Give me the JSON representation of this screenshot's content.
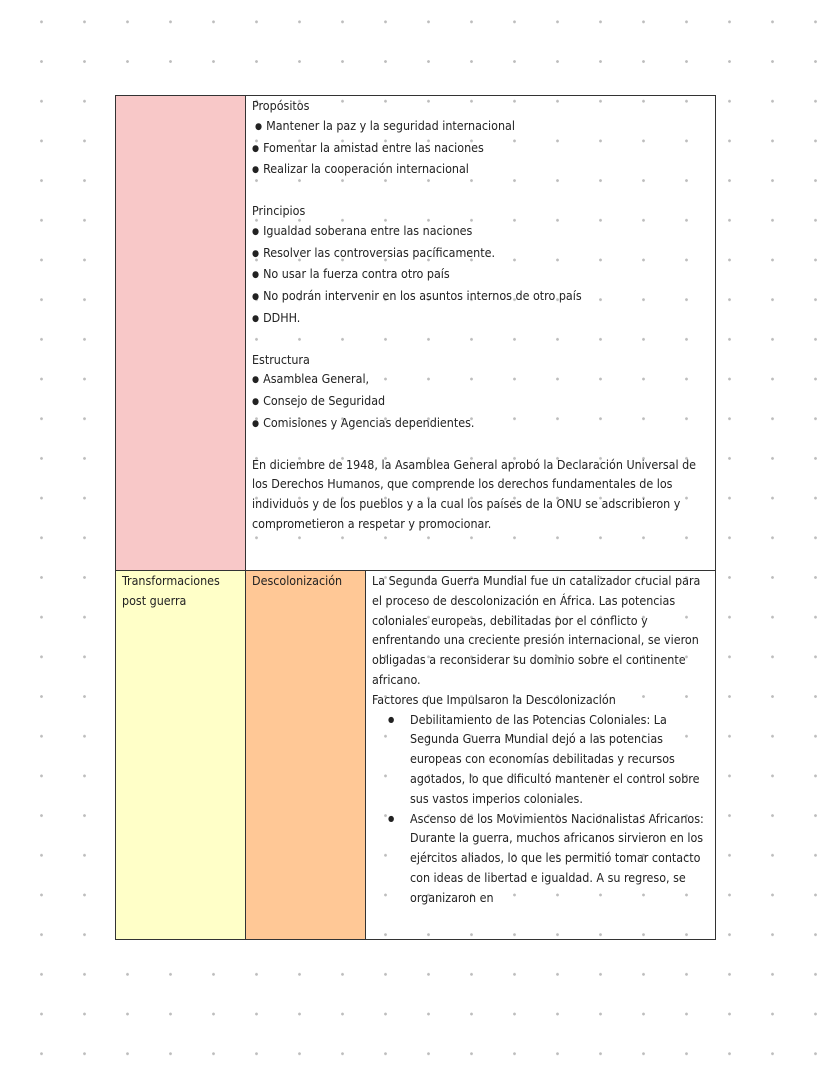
{
  "onu": {
    "propositos_title": "Propósitos",
    "propositos": [
      "Mantener la paz y la seguridad internacional",
      "Fomentar la amistad entre las naciones",
      "Realizar la cooperación internacional"
    ],
    "principios_title": "Principios",
    "principios": [
      "Igualdad soberana entre las naciones",
      "Resolver las controversias pacíficamente.",
      "No usar la fuerza contra otro país",
      "No podrán intervenir en los asuntos internos de otro país",
      "DDHH."
    ],
    "estructura_title": "Estructura",
    "estructura": [
      "Asamblea General,",
      "Consejo de Seguridad",
      "Comisiones y Agencias dependientes."
    ],
    "ddhh_paragraph": "En diciembre de 1948, la Asamblea General aprobó la Declaración Universal de los Derechos Humanos, que comprende los derechos fundamentales de los individuos y de los pueblos y a la cual los países de la ONU se adscribieron y comprometieron a respetar y promocionar."
  },
  "row2": {
    "topic": "Transformaciones post guerra",
    "subtopic": "Descolonización",
    "intro": "La Segunda Guerra Mundial fue un catalizador crucial para el proceso de descolonización en África. Las potencias coloniales europeas, debilitadas por el conflicto y enfrentando una creciente presión internacional, se vieron obligadas a reconsiderar su dominio sobre el continente africano.",
    "factores_title": "Factores que Impulsaron la Descolonización",
    "factores": [
      "Debilitamiento de las Potencias Coloniales: La Segunda Guerra Mundial dejó a las potencias europeas con economías debilitadas y recursos agotados, lo que dificultó mantener el control sobre sus vastos imperios coloniales.",
      "Ascenso de los Movimientos Nacionalistas Africanos: Durante la guerra, muchos africanos sirvieron en los ejércitos aliados, lo que les permitió tomar contacto con ideas de libertad e igualdad. A su regreso, se organizaron en"
    ]
  },
  "colors": {
    "pink": "#f8c8c8",
    "yellow": "#ffffc8",
    "orange": "#ffc896"
  }
}
